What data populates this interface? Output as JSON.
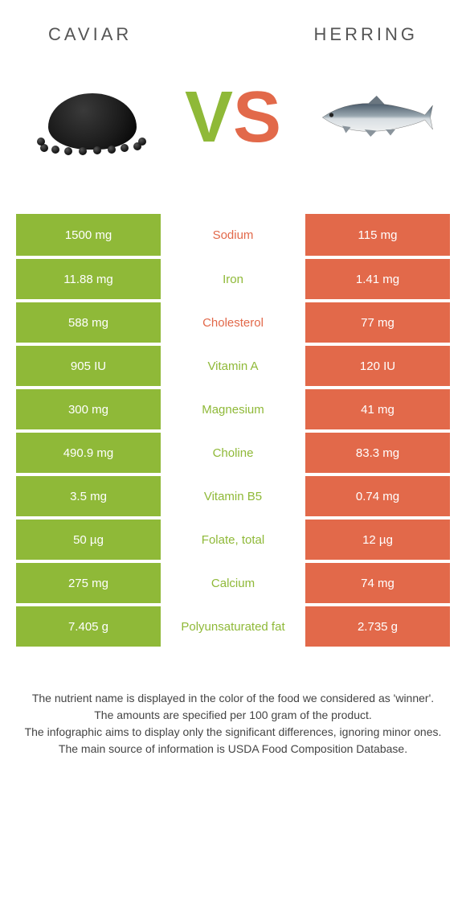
{
  "header": {
    "left_title": "CAVIAR",
    "right_title": "HERRING",
    "vs_v": "V",
    "vs_s": "S"
  },
  "colors": {
    "left_bg": "#8fb938",
    "right_bg": "#e2694a",
    "mid_left_text": "#8fb938",
    "mid_right_text": "#e2694a",
    "row_gap": "#ffffff"
  },
  "table": {
    "rows": [
      {
        "left": "1500 mg",
        "label": "Sodium",
        "right": "115 mg",
        "winner": "right"
      },
      {
        "left": "11.88 mg",
        "label": "Iron",
        "right": "1.41 mg",
        "winner": "left"
      },
      {
        "left": "588 mg",
        "label": "Cholesterol",
        "right": "77 mg",
        "winner": "right"
      },
      {
        "left": "905 IU",
        "label": "Vitamin A",
        "right": "120 IU",
        "winner": "left"
      },
      {
        "left": "300 mg",
        "label": "Magnesium",
        "right": "41 mg",
        "winner": "left"
      },
      {
        "left": "490.9 mg",
        "label": "Choline",
        "right": "83.3 mg",
        "winner": "left"
      },
      {
        "left": "3.5 mg",
        "label": "Vitamin B5",
        "right": "0.74 mg",
        "winner": "left"
      },
      {
        "left": "50 µg",
        "label": "Folate, total",
        "right": "12 µg",
        "winner": "left"
      },
      {
        "left": "275 mg",
        "label": "Calcium",
        "right": "74 mg",
        "winner": "left"
      },
      {
        "left": "7.405 g",
        "label": "Polyunsaturated fat",
        "right": "2.735 g",
        "winner": "left"
      }
    ]
  },
  "footer": {
    "line1": "The nutrient name is displayed in the color of the food we considered as 'winner'.",
    "line2": "The amounts are specified per 100 gram of the product.",
    "line3": "The infographic aims to display only the significant differences, ignoring minor ones.",
    "line4": "The main source of information is USDA Food Composition Database."
  }
}
